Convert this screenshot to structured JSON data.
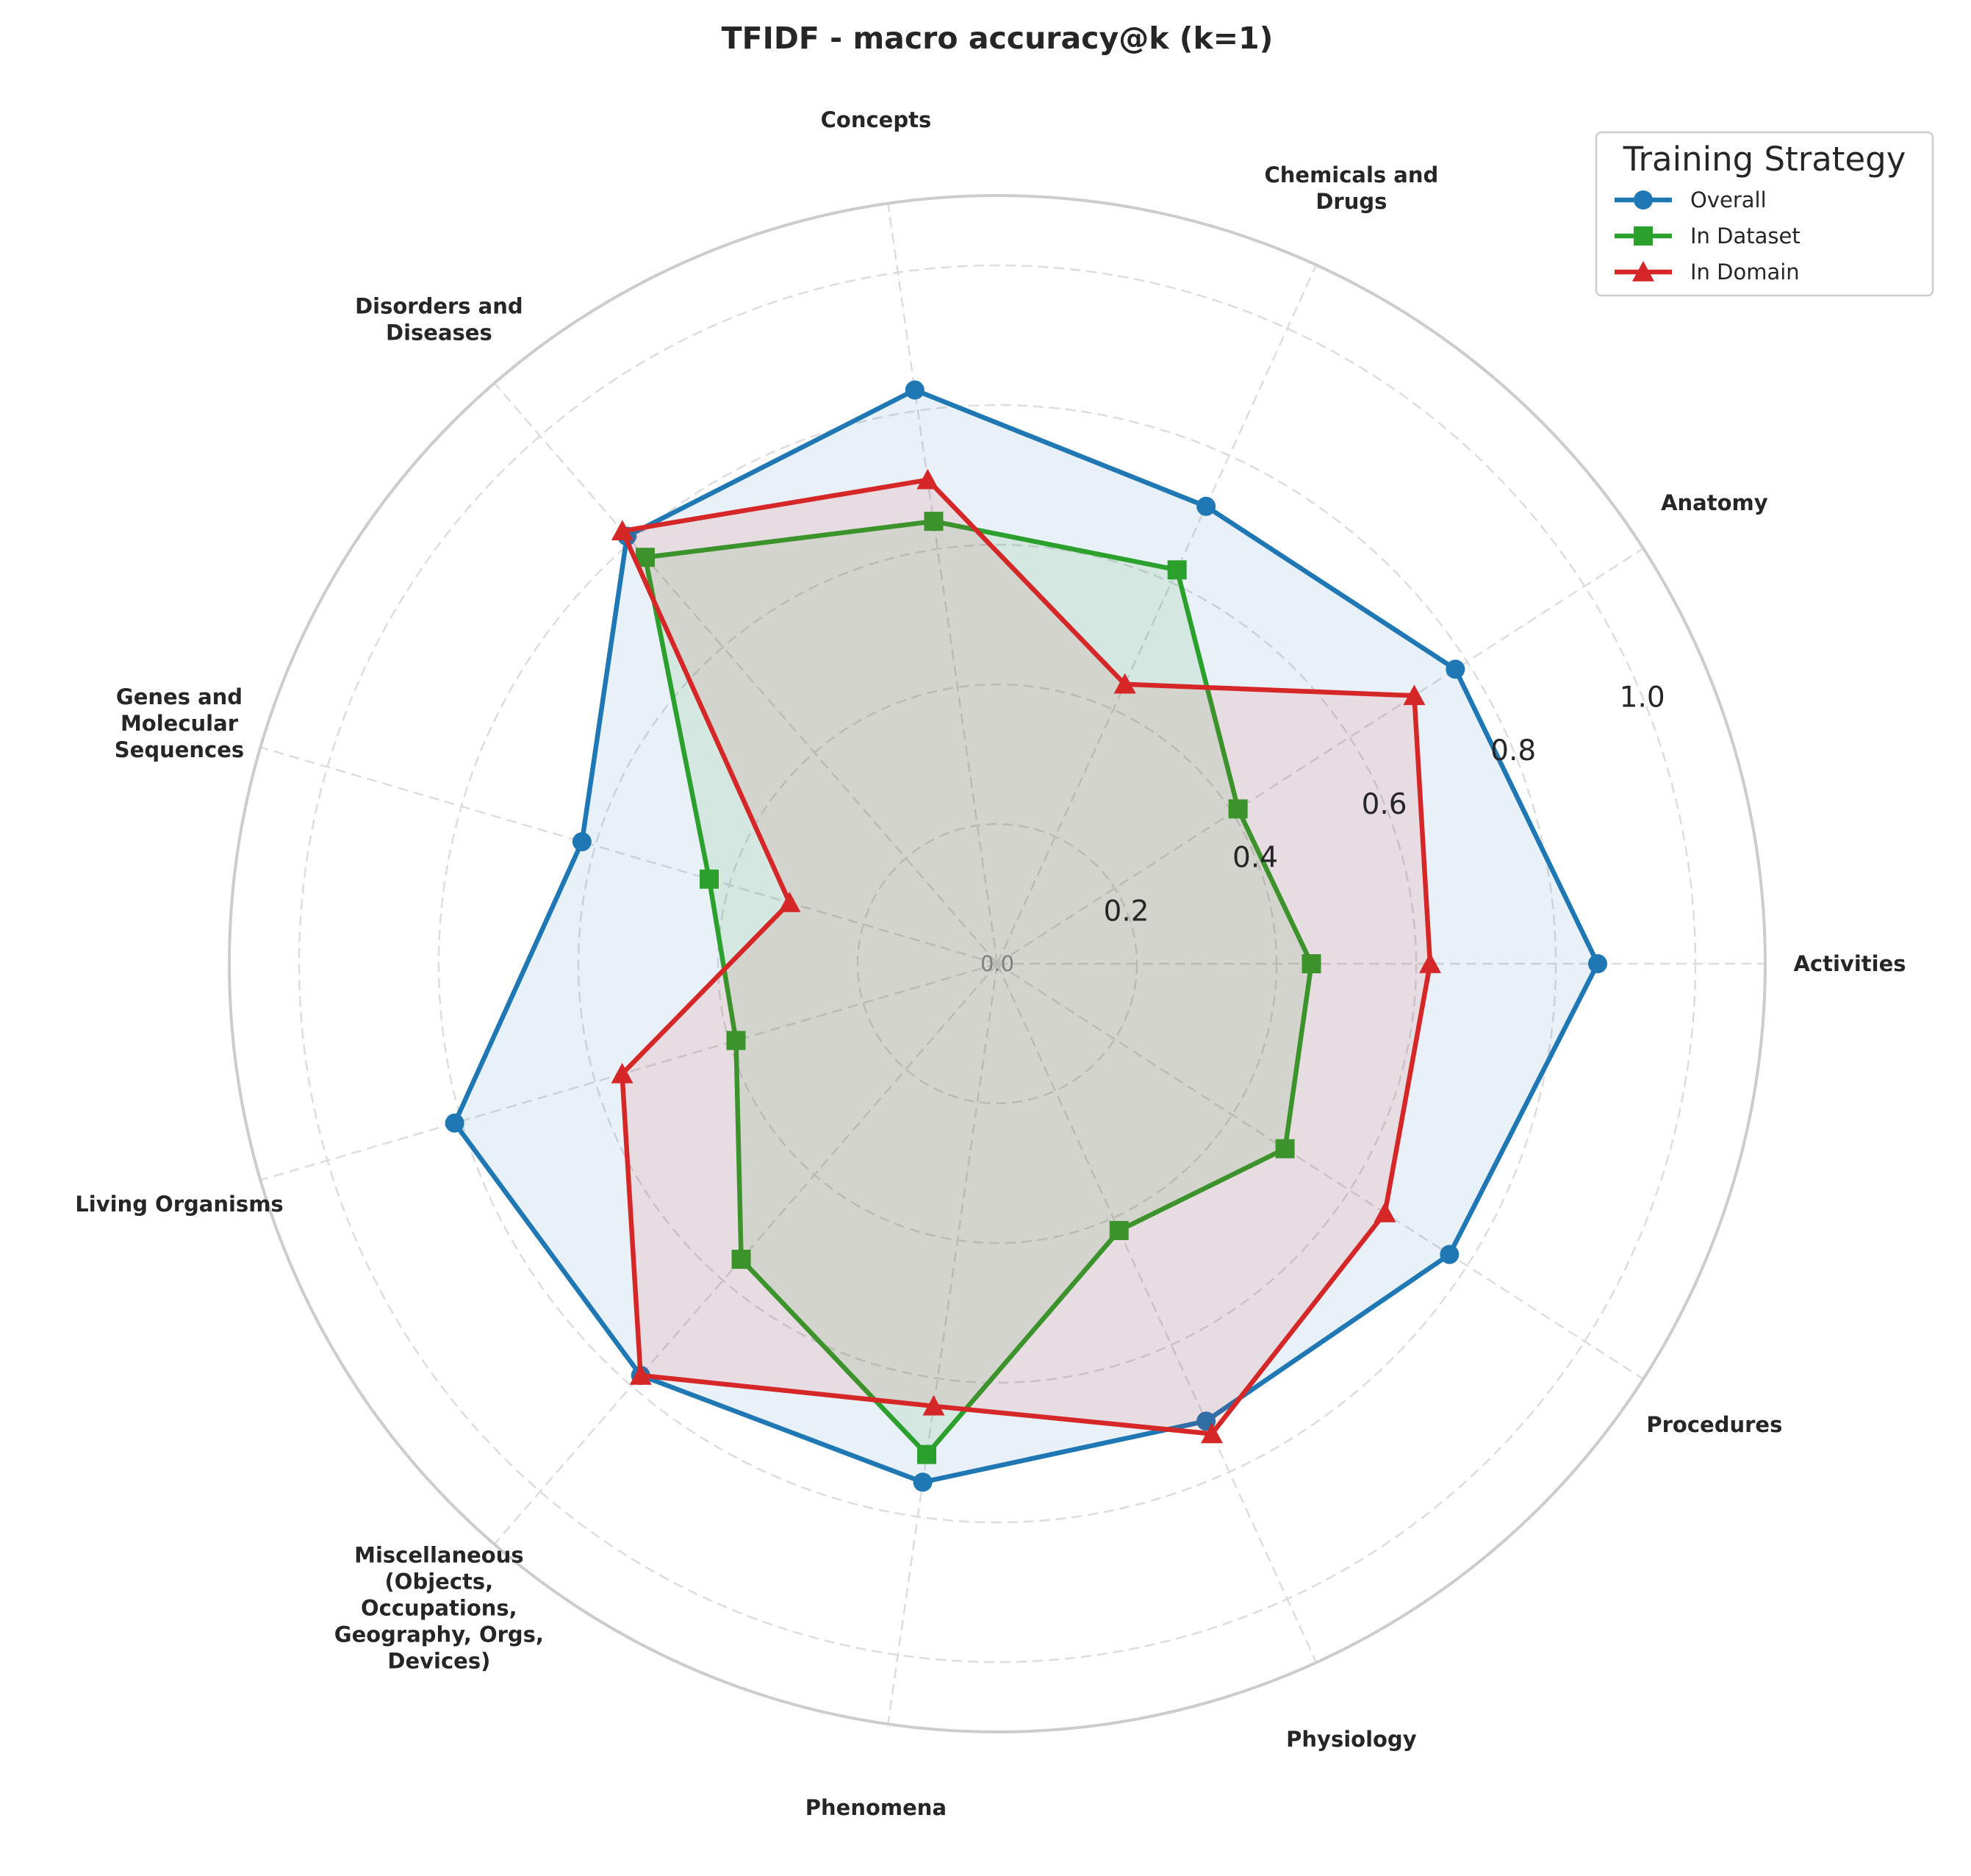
{
  "chart_data": {
    "type": "radar",
    "title": "TFIDF - macro accuracy@k (k=1)",
    "categories": [
      "Activities",
      "Anatomy",
      "Chemicals and\nDrugs",
      "Concepts",
      "Disorders and\nDiseases",
      "Genes and\nMolecular\nSequences",
      "Living Organisms",
      "Miscellaneous\n(Objects,\nOccupations,\nGeography, Orgs,\nDevices)",
      "Phenomena",
      "Physiology",
      "Procedures"
    ],
    "rticks": [
      0.2,
      0.4,
      0.6,
      0.8,
      1.0
    ],
    "rtick_labels": [
      "0.2",
      "0.4",
      "0.6",
      "0.8",
      "1.0"
    ],
    "zero_label": "0.0",
    "rlim": [
      0,
      1.1
    ],
    "grid": true,
    "legend": {
      "title": "Training Strategy",
      "placement": "top-right"
    },
    "series": [
      {
        "name": "Overall",
        "color": "#1f77b4",
        "marker": "circle",
        "values": [
          0.86,
          0.78,
          0.72,
          0.83,
          0.81,
          0.62,
          0.81,
          0.78,
          0.75,
          0.72,
          0.77
        ]
      },
      {
        "name": "In Dataset",
        "color": "#2ca02c",
        "marker": "square",
        "values": [
          0.45,
          0.41,
          0.62,
          0.64,
          0.77,
          0.43,
          0.39,
          0.56,
          0.71,
          0.42,
          0.49
        ]
      },
      {
        "name": "In Domain",
        "color": "#d62728",
        "marker": "triangle",
        "values": [
          0.62,
          0.71,
          0.44,
          0.7,
          0.82,
          0.31,
          0.56,
          0.78,
          0.64,
          0.74,
          0.66
        ]
      }
    ]
  }
}
